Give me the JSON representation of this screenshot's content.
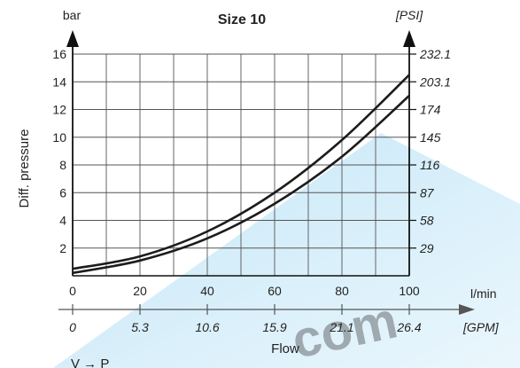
{
  "chart_data": {
    "type": "line",
    "title": "Size 10",
    "left_axis": {
      "unit": "bar",
      "label": "Diff. pressure",
      "ticks": [
        2,
        4,
        6,
        8,
        10,
        12,
        14,
        16
      ],
      "range": [
        0,
        16
      ]
    },
    "right_axis": {
      "unit": "[PSI]",
      "ticks": [
        "29",
        "58",
        "87",
        "116",
        "145",
        "174",
        "203.1",
        "232.1"
      ]
    },
    "x_axis": {
      "unit": "l/min",
      "ticks": [
        0,
        20,
        40,
        60,
        80,
        100
      ],
      "range": [
        0,
        100
      ]
    },
    "x2_axis": {
      "unit": "[GPM]",
      "ticks": [
        "0",
        "5.3",
        "10.6",
        "15.9",
        "21.1",
        "26.4"
      ]
    },
    "xlabel": "Flow",
    "grid": true,
    "series": [
      {
        "x": [
          0,
          20,
          40,
          60,
          80,
          100
        ],
        "y": [
          0.5,
          1.4,
          3.2,
          6.0,
          9.8,
          14.5
        ]
      },
      {
        "x": [
          0,
          20,
          40,
          60,
          80,
          100
        ],
        "y": [
          0.2,
          1.1,
          2.7,
          5.2,
          8.6,
          13.0
        ]
      }
    ],
    "bottom_text": "V → P",
    "watermark": "com"
  },
  "colors": {
    "curve": "#1c1c1c",
    "grid": "#555555",
    "axis": "#111111",
    "watermark": "#55b9ea"
  }
}
